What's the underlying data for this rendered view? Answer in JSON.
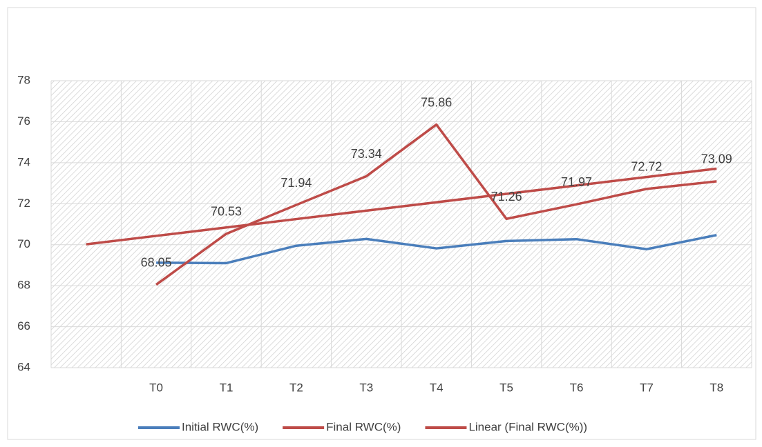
{
  "chart_data": {
    "type": "line",
    "categories": [
      null,
      "T0",
      "T1",
      "T2",
      "T3",
      "T4",
      "T5",
      "T6",
      "T7",
      "T8"
    ],
    "series": [
      {
        "name": "Initial RWC(%)",
        "color": "#4a7ebb",
        "values": [
          null,
          69.12,
          69.1,
          69.95,
          70.28,
          69.82,
          70.18,
          70.27,
          69.78,
          70.47
        ]
      },
      {
        "name": "Final RWC(%)",
        "color": "#be4b48",
        "values": [
          null,
          68.05,
          70.53,
          71.94,
          73.34,
          75.86,
          71.26,
          71.97,
          72.72,
          73.09
        ],
        "data_labels": true
      },
      {
        "name": "Linear (Final RWC(%))",
        "color": "#be4b48",
        "values": [
          70.02,
          70.43,
          70.84,
          71.25,
          71.66,
          72.07,
          72.48,
          72.89,
          73.3,
          73.71
        ]
      }
    ],
    "ylim": [
      64,
      78
    ],
    "yticks": [
      64,
      66,
      68,
      70,
      72,
      74,
      76,
      78
    ],
    "grid": true,
    "legend": "bottom"
  }
}
